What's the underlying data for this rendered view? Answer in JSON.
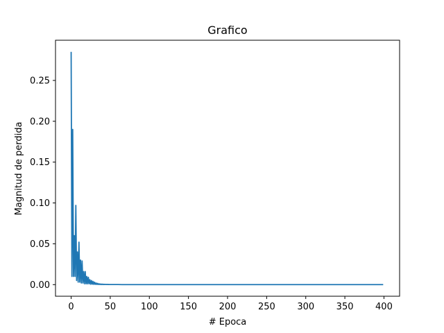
{
  "chart_data": {
    "type": "line",
    "title": "Grafico",
    "xlabel": "# Epoca",
    "ylabel": "Magnitud de perdida",
    "xlim": [
      -20,
      420
    ],
    "ylim": [
      -0.0142,
      0.2992
    ],
    "xticks": [
      0,
      50,
      100,
      150,
      200,
      250,
      300,
      350,
      400
    ],
    "yticks": [
      0.0,
      0.05,
      0.1,
      0.15,
      0.2,
      0.25
    ],
    "ytick_labels": [
      "0.00",
      "0.05",
      "0.10",
      "0.15",
      "0.20",
      "0.25"
    ],
    "grid": false,
    "series": [
      {
        "color": "#1f77b4",
        "x": [
          0,
          1,
          2,
          3,
          4,
          5,
          6,
          7,
          8,
          9,
          10,
          11,
          12,
          13,
          14,
          15,
          16,
          17,
          18,
          19,
          20,
          21,
          22,
          23,
          24,
          25,
          26,
          27,
          28,
          29,
          30,
          31,
          32,
          33,
          34,
          35,
          36,
          37,
          38,
          39,
          40,
          41,
          42,
          43,
          44,
          45,
          46,
          47,
          48,
          49,
          50,
          55,
          60,
          65,
          70,
          80,
          90,
          100,
          150,
          200,
          250,
          300,
          350,
          399
        ],
        "y": [
          0.285,
          0.01,
          0.19,
          0.01,
          0.06,
          0.01,
          0.097,
          0.005,
          0.04,
          0.003,
          0.052,
          0.003,
          0.03,
          0.002,
          0.029,
          0.002,
          0.016,
          0.001,
          0.016,
          0.001,
          0.01,
          0.001,
          0.009,
          0.001,
          0.006,
          0.0005,
          0.005,
          0.0005,
          0.004,
          0.0003,
          0.003,
          0.0003,
          0.002,
          0.0002,
          0.0015,
          0.0002,
          0.001,
          0.0001,
          0.0008,
          0.0001,
          0.0006,
          0.0001,
          0.0005,
          0.0001,
          0.0004,
          0.0001,
          0.0003,
          0.0001,
          0.0002,
          0.0001,
          0.0001,
          0.0001,
          0.0001,
          0.0,
          0.0,
          0.0,
          0.0,
          0.0,
          0.0,
          0.0,
          0.0,
          0.0,
          0.0,
          0.0
        ]
      }
    ]
  }
}
